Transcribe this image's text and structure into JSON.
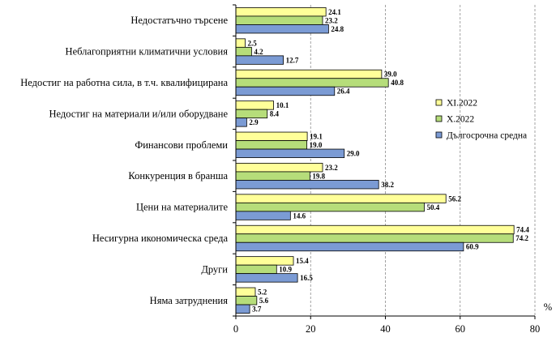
{
  "chart_data": {
    "type": "bar",
    "orientation": "horizontal",
    "categories": [
      "Недостатъчно търсене",
      "Неблагоприятни климатични условия",
      "Недостиг на работна сила, в т.ч. квалифицирана",
      "Недостиг на материали и/или оборудване",
      "Финансови проблеми",
      "Конкуренция в бранша",
      "Цени на материалите",
      "Несигурна икономическа среда",
      "Други",
      "Няма затруднения"
    ],
    "series": [
      {
        "name": "XI.2022",
        "color": "#ffff99",
        "values": [
          24.1,
          2.5,
          39.0,
          10.1,
          19.1,
          23.2,
          56.2,
          74.4,
          15.4,
          5.2
        ],
        "labels": [
          "24.1",
          "2.5",
          "39.0",
          "10.1",
          "19.1",
          "23.2",
          "56.2",
          "74.4",
          "15.4",
          "5.2"
        ]
      },
      {
        "name": "X.2022",
        "color": "#b6dd7a",
        "values": [
          23.2,
          4.2,
          40.8,
          8.4,
          19.0,
          19.8,
          50.4,
          74.2,
          10.9,
          5.6
        ],
        "labels": [
          "23.2",
          "4.2",
          "40.8",
          "8.4",
          "19.0",
          "19.8",
          "50.4",
          "74.2",
          "10.9",
          "5.6"
        ]
      },
      {
        "name": "Дългосрочна средна",
        "color": "#7b9bd4",
        "values": [
          24.8,
          12.7,
          26.4,
          2.9,
          29.0,
          38.2,
          14.6,
          60.9,
          16.5,
          3.7
        ],
        "labels": [
          "24.8",
          "12.7",
          "26.4",
          "2.9",
          "29.0",
          "38.2",
          "14.6",
          "60.9",
          "16.5",
          "3.7"
        ]
      }
    ],
    "xlim": [
      0,
      80
    ],
    "xticks": [
      0,
      20,
      40,
      60,
      80
    ],
    "xtick_labels": [
      "0",
      "20",
      "40",
      "60",
      "80"
    ],
    "unit": "%",
    "grid": "vertical dashed",
    "legend": "right"
  }
}
